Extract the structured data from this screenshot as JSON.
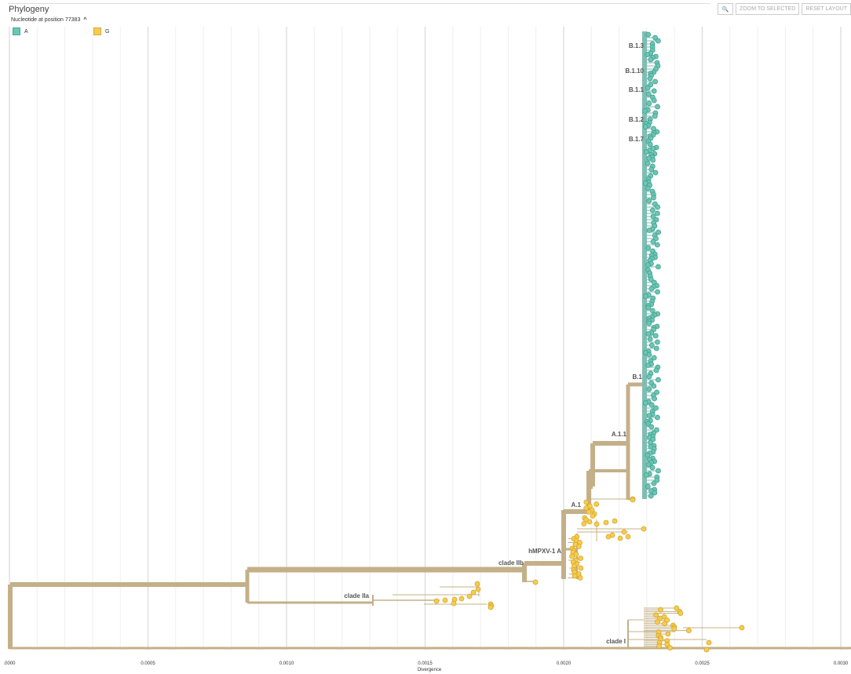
{
  "header": {
    "title": "Phylogeny",
    "subtitle": "Nucleotide at position 77383",
    "collapse_icon": "chevron-up-icon"
  },
  "controls": {
    "zoom_icon": "magnifier-icon",
    "zoom_selected": "ZOOM TO SELECTED",
    "reset_layout": "RESET LAYOUT"
  },
  "legend": [
    {
      "label": "A",
      "color": "#6cc5b5"
    },
    {
      "label": "G",
      "color": "#f7cc4c"
    }
  ],
  "colors": {
    "branch": "#c4b088",
    "tip_A": "#6cc5b5",
    "tip_G": "#f7cc4c"
  },
  "chart_data": {
    "type": "phylogenetic-tree",
    "xlabel": "Divergence",
    "x_ticks": [
      ".0000",
      "0.0005",
      "0.0010",
      "0.0015",
      "0.0020",
      "0.0025",
      "0.0030"
    ],
    "xlim": [
      0,
      0.003
    ],
    "color_by": "Nucleotide at position 77383",
    "clade_labels": [
      "B.1.3",
      "B.1.10",
      "B.1.1",
      "B.1.2",
      "B.1.7",
      "B.1",
      "A.1.1",
      "A.1",
      "hMPXV-1 A",
      "clade IIb",
      "clade IIa",
      "clade I"
    ]
  }
}
